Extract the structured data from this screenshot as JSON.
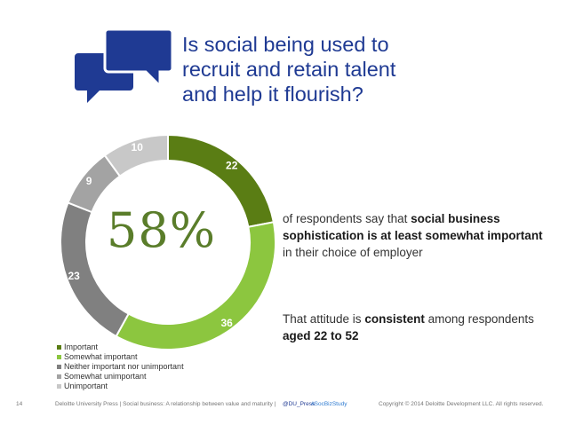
{
  "title_lines": [
    "Is social being used to",
    "recruit and retain talent",
    "and help it flourish?"
  ],
  "big_stat": "58%",
  "stat_text": {
    "a": "of respondents say that ",
    "b": "social business sophistication is at least somewhat important",
    "c": " in their choice of employer"
  },
  "stat2_text": {
    "a": "That attitude is ",
    "b": "consistent",
    "c": " among respondents ",
    "d": "aged 22 to 52"
  },
  "chart_data": {
    "type": "pie",
    "categories": [
      "Important",
      "Somewhat important",
      "Neither important nor unimportant",
      "Somewhat unimportant",
      "Unimportant"
    ],
    "values": [
      22,
      36,
      23,
      9,
      10
    ],
    "colors": [
      "#5a7d14",
      "#8cc63f",
      "#808080",
      "#a3a3a3",
      "#c8c8c8"
    ],
    "legend_position": "bottom-left"
  },
  "footer": {
    "page": "14",
    "source": "Deloitte University Press | Social business: A relationship between value and maturity |",
    "handle": "@DU_Press",
    "tag": "#SocBizStudy",
    "copyright": "Copyright © 2014 Deloitte Development LLC. All rights reserved."
  },
  "icon": "speech-bubbles-icon",
  "accent_color": "#1f3a93"
}
